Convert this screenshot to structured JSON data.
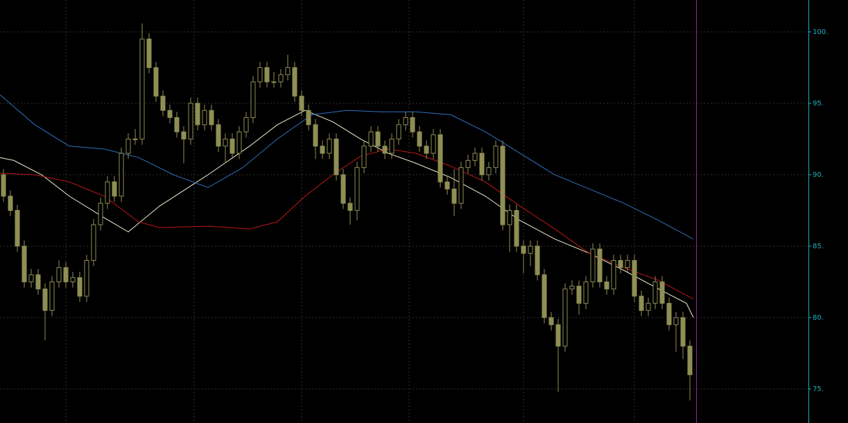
{
  "chart_data": {
    "type": "candlestick",
    "xlim": [
      -0.5,
      116.1
    ],
    "ylim": [
      72.62,
      102.23
    ],
    "yticks": [
      {
        "value": 75,
        "label": "75."
      },
      {
        "value": 80,
        "label": "80."
      },
      {
        "value": 85,
        "label": "85."
      },
      {
        "value": 90,
        "label": "90."
      },
      {
        "value": 95,
        "label": "95."
      },
      {
        "value": 100,
        "label": "100."
      }
    ],
    "grid": true,
    "color": "#8f8f55",
    "open": [
      90,
      88.5,
      87.5,
      85,
      82.5,
      83,
      82,
      80.5,
      82.5,
      83.5,
      82.5,
      82.8,
      81.5,
      84,
      86.5,
      88,
      89.5,
      88.5,
      91.5,
      92.5,
      92.5,
      99.5,
      97.5,
      95.5,
      94.5,
      94,
      93,
      92.5,
      95,
      93.5,
      94.5,
      93.5,
      92,
      92.5,
      91.5,
      93,
      94,
      96.5,
      97.5,
      96.5,
      96.5,
      97,
      97.5,
      95.5,
      94.5,
      93.5,
      92,
      91.5,
      92.5,
      90,
      88,
      87.5,
      90.5,
      92,
      93,
      92,
      91.5,
      92.5,
      93.5,
      94,
      93,
      92,
      91.5,
      92.8,
      89.5,
      89,
      88,
      90.5,
      91,
      91.5,
      90,
      90.5,
      92,
      86.5,
      87.5,
      85,
      84.5,
      85,
      83,
      80,
      79.5,
      78,
      82,
      82.2,
      81,
      82.5,
      84.8,
      82.5,
      82,
      84,
      83.5,
      84,
      81.5,
      80.5,
      81,
      82.5,
      81,
      79.5,
      80,
      78
    ],
    "high": [
      90.4,
      88.9,
      87.9,
      85.4,
      83.4,
      83.4,
      82.4,
      82.9,
      84,
      83.9,
      83.2,
      83.2,
      84.4,
      86.9,
      88.4,
      89.9,
      89.9,
      91.9,
      92.9,
      93.2,
      100.6,
      99.9,
      97.9,
      95.9,
      94.9,
      94.4,
      93.4,
      95.4,
      95.4,
      94.9,
      94.9,
      93.9,
      92.9,
      92.9,
      93.4,
      94.4,
      96.9,
      97.9,
      97.9,
      97.2,
      97.4,
      98.4,
      97.9,
      95.9,
      94.9,
      93.9,
      92.4,
      92.9,
      92.9,
      90.4,
      88.4,
      90.9,
      92.4,
      93.4,
      93.4,
      92.4,
      92.9,
      93.9,
      94.4,
      94.4,
      93.4,
      92.4,
      93.2,
      93.2,
      89.9,
      90.4,
      90.9,
      91.4,
      91.9,
      91.9,
      90.9,
      92.4,
      92.4,
      87.9,
      87.9,
      85.4,
      85.4,
      85.4,
      83.4,
      80.4,
      79.9,
      82.4,
      82.6,
      82.6,
      82.9,
      85.2,
      85.2,
      82.9,
      84.4,
      84.4,
      84.4,
      84.4,
      81.9,
      81.4,
      82.9,
      82.9,
      81.4,
      80.4,
      80.4,
      78.4
    ],
    "low": [
      88.1,
      87.1,
      84.6,
      82.1,
      82.1,
      81.6,
      78.4,
      80.1,
      82.1,
      82.1,
      82.1,
      81.1,
      81.1,
      83.6,
      86.1,
      87.6,
      88.1,
      88.1,
      91.1,
      92.1,
      92.1,
      97.1,
      95.1,
      94.1,
      93.6,
      92.6,
      90.8,
      92.1,
      93.1,
      93.1,
      93.1,
      91.6,
      90.8,
      91.1,
      91.1,
      92.6,
      93.6,
      96.1,
      96.1,
      96.1,
      96.1,
      96.6,
      95.1,
      94.1,
      93.1,
      91.1,
      91.1,
      91.1,
      89.6,
      87.6,
      86.5,
      86.8,
      90.1,
      91.6,
      91.6,
      91.1,
      91.1,
      92.1,
      93.1,
      92.6,
      91.6,
      91.1,
      91.1,
      89.1,
      88.6,
      87.1,
      87.6,
      90.1,
      90.6,
      89.6,
      89.6,
      90.1,
      86.1,
      84.6,
      84.6,
      83.1,
      83.6,
      82.6,
      79.6,
      79.1,
      74.8,
      77.6,
      81.6,
      80.2,
      80.6,
      82.1,
      82.1,
      81.6,
      81.6,
      83.1,
      83.1,
      81.1,
      80.1,
      80.1,
      80.6,
      80.6,
      79.1,
      77.6,
      77.1,
      74.2
    ],
    "close": [
      88.5,
      87.5,
      85,
      82.5,
      83,
      82,
      80.5,
      82.5,
      83.5,
      82.5,
      82.8,
      81.5,
      84,
      86.5,
      88,
      89.5,
      88.5,
      91.5,
      92.5,
      92.5,
      99.5,
      97.5,
      95.5,
      94.5,
      94,
      93,
      92.5,
      95,
      93.5,
      94.5,
      93.5,
      92,
      92.5,
      91.5,
      93,
      94,
      96.5,
      97.5,
      96.5,
      96.5,
      97,
      97.5,
      95.5,
      94.5,
      93.5,
      92,
      91.5,
      92.5,
      90,
      88,
      87.5,
      90.5,
      92,
      93,
      92,
      91.5,
      92.5,
      93.5,
      94,
      93,
      92,
      91.5,
      92.8,
      89.5,
      89,
      88,
      90.5,
      91,
      91.5,
      90,
      90.5,
      92,
      86.5,
      87.5,
      85,
      84.5,
      85,
      83,
      80,
      79.5,
      78,
      82,
      82.2,
      81,
      82.5,
      84.8,
      82.5,
      82,
      84,
      83.5,
      84,
      81.5,
      80.5,
      81,
      82.5,
      81,
      79.5,
      80,
      78,
      76
    ],
    "lines": [
      {
        "color": "#f0f0d0",
        "x": [
          -0.5,
          1.5,
          5.5,
          9.5,
          14.5,
          18,
          22.5,
          29.5,
          35.5,
          39.5,
          43.5,
          47.5,
          51.5,
          55.5,
          59.5,
          64.5,
          69.5,
          74.5,
          79.5,
          84.5,
          89.5,
          94.5,
          98.5,
          99.5
        ],
        "values": [
          91.2,
          91,
          90,
          88.5,
          87,
          86,
          87.8,
          90,
          92,
          93.5,
          94.5,
          93.7,
          92.5,
          91.5,
          90.8,
          89.8,
          88.5,
          86.8,
          85.5,
          84.5,
          83.3,
          82,
          81,
          80
        ]
      },
      {
        "color": "#c01818",
        "x": [
          -0.5,
          4.5,
          9.5,
          14.5,
          19.5,
          22.5,
          29.5,
          35.5,
          39.5,
          43.5,
          47.5,
          51.5,
          55.5,
          59.5,
          64.5,
          69.5,
          74.5,
          79.5,
          84.5,
          89.5,
          94.5,
          99.5
        ],
        "values": [
          90.1,
          90,
          89.5,
          88.5,
          86.7,
          86.3,
          86.4,
          86.2,
          86.7,
          88.5,
          90,
          91.3,
          91.8,
          91.5,
          90.6,
          89.5,
          87.8,
          86.2,
          84.5,
          83.5,
          82.6,
          81.3
        ]
      },
      {
        "color": "#2e72c0",
        "x": [
          -0.5,
          4.5,
          9.5,
          14.5,
          19.5,
          24.5,
          29.5,
          34.5,
          39.5,
          44.5,
          49.5,
          54.5,
          59.5,
          64.5,
          69.5,
          74.5,
          79.5,
          84.5,
          89.5,
          94.5,
          99.5
        ],
        "values": [
          95.6,
          93.5,
          92,
          91.8,
          91.2,
          90,
          89.1,
          90.5,
          92.5,
          94.2,
          94.5,
          94.4,
          94.4,
          94.2,
          93,
          91.5,
          90,
          89,
          88,
          86.8,
          85.5
        ]
      }
    ]
  }
}
